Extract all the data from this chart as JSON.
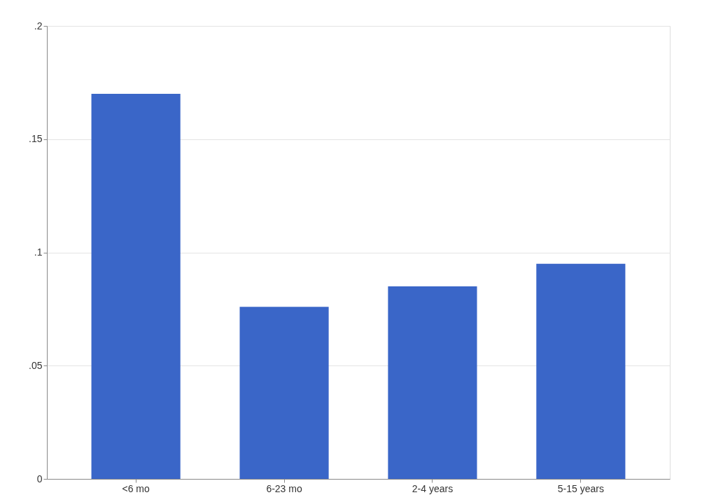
{
  "chart_data": {
    "type": "bar",
    "categories": [
      "<6 mo",
      "6-23 mo",
      "2-4 years",
      "5-15 years"
    ],
    "values": [
      0.17,
      0.076,
      0.085,
      0.095
    ],
    "color": "#3a66c8",
    "ylim": [
      0,
      0.2
    ],
    "yticks": [
      0,
      {
        "value": 0.05,
        "label": ".05"
      },
      {
        "value": 0.1,
        "label": ".1"
      },
      {
        "value": 0.15,
        "label": ".15"
      },
      {
        "value": 0.2,
        "label": ".2"
      }
    ],
    "grid": "y"
  }
}
